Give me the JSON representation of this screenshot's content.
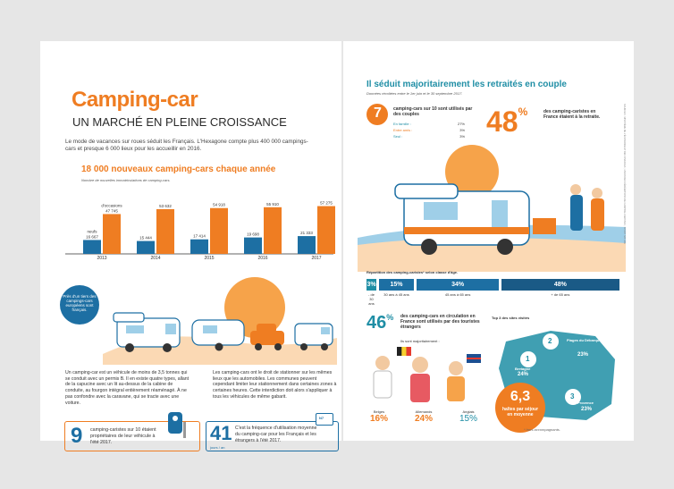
{
  "left": {
    "title": "Camping-car",
    "subtitle": "UN MARCHÉ EN PLEINE CROISSANCE",
    "intro": "Le mode de vacances sur roues séduit les Français. L'Hexagone compte plus 400 000 campings-cars et presque 6 000 lieux pour les accueillir en 2016.",
    "chart_title": "18 000 nouveaux camping-cars chaque année",
    "chart_note": "Nombre de nouvelles immatriculations de camping-cars.",
    "badge_neufs": "neufs",
    "badge_occasion": "d'occasions",
    "badge_text": "Près d'un tiers des campings-cars européens sont français.",
    "para1": "Un camping-car est un véhicule de moins de 3,5 tonnes qui se conduit avec un permis B. Il en existe quatre types, allant de la capucine avec un lit au-dessus de la cabine de conduite, au fourgon intégral entièrement réaménagé. À ne pas confondre avec la caravane, qui se tracte avec une voiture.",
    "para2": "Les camping-cars ont le droit de stationner sur les mêmes lieux que les automobiles. Les communes peuvent cependant limiter leur stationnement dans certaines zones à certaines heures. Cette interdiction doit alors s'appliquer à tous les véhicules de même gabarit.",
    "stat9_num": "9",
    "stat9_text": "camping-caristes sur 10 étaient propriétaires de leur véhicule à l'été 2017.",
    "stat41_num": "41",
    "stat41_unit": "jours / an",
    "stat41_text": "C'est la fréquence d'utilisation moyenne du camping-car pour les Français et les étrangers à l'été 2017.",
    "road_sign": "N7"
  },
  "chart_data": {
    "type": "bar",
    "categories": [
      "2013",
      "2014",
      "2015",
      "2016",
      "2017"
    ],
    "series": [
      {
        "name": "neufs",
        "values": [
          16667,
          15444,
          17414,
          19698,
          21333
        ]
      },
      {
        "name": "d'occasions",
        "values": [
          47745,
          53632,
          54918,
          55910,
          57275
        ]
      }
    ],
    "value_labels": {
      "neufs": [
        "16 667",
        "15 444",
        "17 414",
        "19 698",
        "21 333"
      ],
      "occasions": [
        "47 745",
        "53 632",
        "54 918",
        "55 910",
        "57 275"
      ]
    },
    "ylim": [
      0,
      60000
    ],
    "colors": {
      "neufs": "#1d6fa3",
      "occasions": "#ef7d22"
    }
  },
  "right": {
    "title": "Il séduit majoritairement les retraités en couple",
    "dates": "Données récoltées entre le 1er juin et le 30 septembre 2017.",
    "couple_num": "7",
    "couple_text": "camping-cars sur 10 sont utilisés par des couples",
    "groups": [
      {
        "label": "En famille :",
        "value": "27%"
      },
      {
        "label": "Entre amis :",
        "value": "3%"
      },
      {
        "label": "Seul :",
        "value": "3%"
      }
    ],
    "retired_num": "48",
    "retired_unit": "%",
    "retired_text": "des camping-caristes en France étaient à la retraite.",
    "age_title": "Répartition des camping-caristes* selon classe d'âge.",
    "ages": [
      {
        "value": "3%",
        "label": "- de 30 ans",
        "share": 3
      },
      {
        "value": "15%",
        "label": "30 ans à 45 ans",
        "share": 15
      },
      {
        "value": "34%",
        "label": "45 ans à 65 ans",
        "share": 34
      },
      {
        "value": "48%",
        "label": "+ de 65 ans",
        "share": 48
      }
    ],
    "foreign_num": "46",
    "foreign_unit": "%",
    "foreign_text": "des camping-cars en circulation en France sont utilisés par des touristes étrangers",
    "mostly": "Ils sont majoritairement :",
    "nations": [
      {
        "name": "Belges",
        "value": "16%"
      },
      {
        "name": "Allemands",
        "value": "24%"
      },
      {
        "name": "Anglais",
        "value": "15%"
      }
    ],
    "sites_title": "Top 3 des sites visités",
    "sites": [
      {
        "rank": "1",
        "name": "Bretagne",
        "value": "24%"
      },
      {
        "rank": "2",
        "name": "Plages du Débarquement",
        "value": "23%"
      },
      {
        "rank": "3",
        "name": "Provence",
        "value": "23%"
      }
    ],
    "stops_num": "6,3",
    "stops_text": "haltes par séjour en moyenne",
    "footnote": "* hors accompagnants."
  },
  "side_text": "SOURCES : MINISTÈRE DE L'ÉCONOMIE ET DES FINANCES ; UNION DES FÉDÉRATIONS DE CAMPING-CARISTES ; SPORT NATURE"
}
